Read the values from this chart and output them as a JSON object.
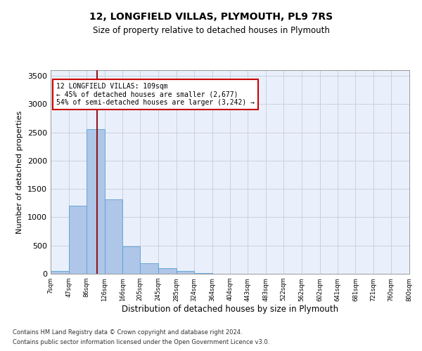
{
  "title1": "12, LONGFIELD VILLAS, PLYMOUTH, PL9 7RS",
  "title2": "Size of property relative to detached houses in Plymouth",
  "xlabel": "Distribution of detached houses by size in Plymouth",
  "ylabel": "Number of detached properties",
  "bar_color": "#aec6e8",
  "bar_edge_color": "#5a9fd4",
  "background_color": "#eaf0fb",
  "grid_color": "#c8d0e0",
  "vline_color": "#8b1a1a",
  "vline_x": 109,
  "annotation_line1": "12 LONGFIELD VILLAS: 109sqm",
  "annotation_line2": "← 45% of detached houses are smaller (2,677)",
  "annotation_line3": "54% of semi-detached houses are larger (3,242) →",
  "annotation_box_color": "#ffffff",
  "annotation_border_color": "#cc0000",
  "bin_edges": [
    7,
    47,
    86,
    126,
    166,
    205,
    245,
    285,
    324,
    364,
    404,
    443,
    483,
    522,
    562,
    602,
    641,
    681,
    721,
    760,
    800
  ],
  "bar_heights": [
    50,
    1210,
    2560,
    1320,
    490,
    185,
    95,
    45,
    15,
    5,
    2,
    0,
    0,
    0,
    0,
    0,
    0,
    0,
    0,
    0
  ],
  "ylim": [
    0,
    3600
  ],
  "yticks": [
    0,
    500,
    1000,
    1500,
    2000,
    2500,
    3000,
    3500
  ],
  "footer1": "Contains HM Land Registry data © Crown copyright and database right 2024.",
  "footer2": "Contains public sector information licensed under the Open Government Licence v3.0."
}
